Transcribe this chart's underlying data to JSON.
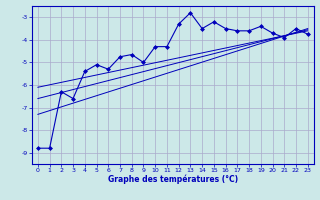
{
  "xlabel": "Graphe des températures (°C)",
  "background_color": "#cce8e8",
  "grid_color": "#aaaacc",
  "line_color": "#0000bb",
  "x_ticks": [
    0,
    1,
    2,
    3,
    4,
    5,
    6,
    7,
    8,
    9,
    10,
    11,
    12,
    13,
    14,
    15,
    16,
    17,
    18,
    19,
    20,
    21,
    22,
    23
  ],
  "ylim": [
    -9.5,
    -2.5
  ],
  "xlim": [
    -0.5,
    23.5
  ],
  "yticks": [
    -9,
    -8,
    -7,
    -6,
    -5,
    -4,
    -3
  ],
  "series1_x": [
    0,
    1,
    2,
    3,
    4,
    5,
    6,
    7,
    8,
    9,
    10,
    11,
    12,
    13,
    14,
    15,
    16,
    17,
    18,
    19,
    20,
    21,
    22,
    23
  ],
  "series1_y": [
    -8.8,
    -8.8,
    -6.3,
    -6.6,
    -5.4,
    -5.1,
    -5.3,
    -4.75,
    -4.65,
    -5.0,
    -4.3,
    -4.3,
    -3.3,
    -2.8,
    -3.5,
    -3.2,
    -3.5,
    -3.6,
    -3.6,
    -3.4,
    -3.7,
    -3.9,
    -3.5,
    -3.75
  ],
  "series2_x": [
    0,
    23
  ],
  "series2_y": [
    -6.1,
    -3.6
  ],
  "series3_x": [
    0,
    23
  ],
  "series3_y": [
    -6.6,
    -3.55
  ],
  "series4_x": [
    0,
    23
  ],
  "series4_y": [
    -7.3,
    -3.5
  ]
}
